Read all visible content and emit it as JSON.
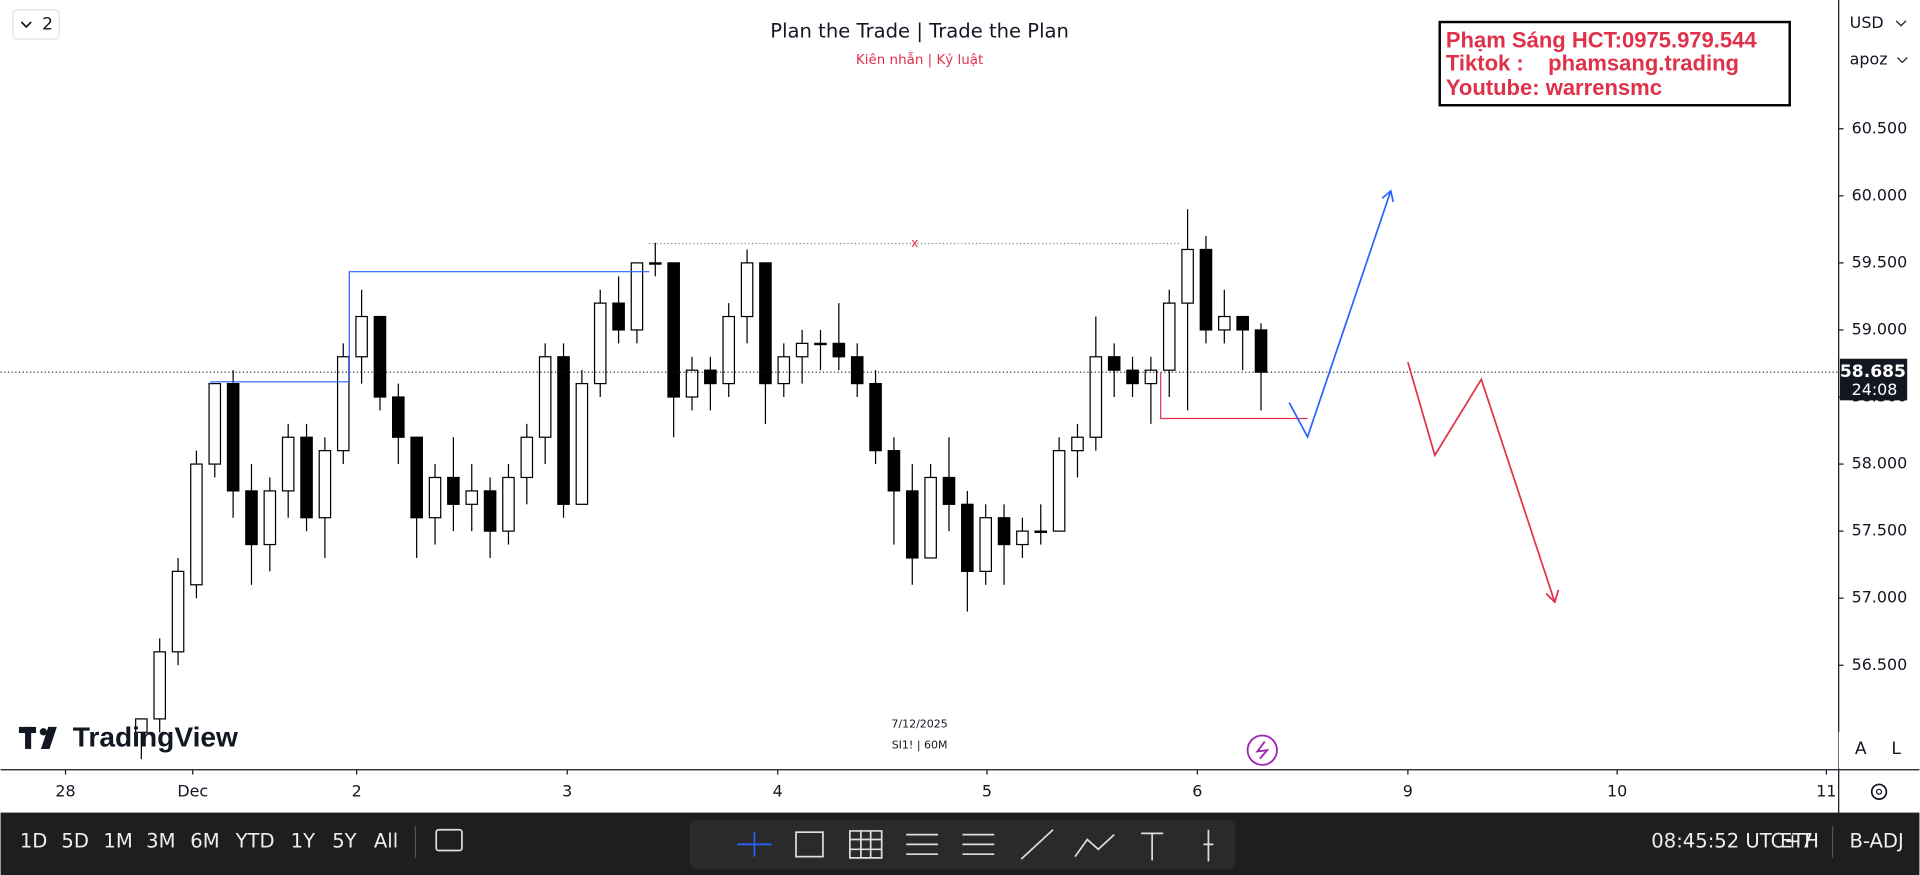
{
  "ui": {
    "interval_badge": "2",
    "currency": "USD",
    "user": "apoz",
    "watermark": [
      "Phạm Sáng HCT:0975.979.544",
      "Tiktok :    phamsang.trading",
      "Youtube: warrensmc"
    ],
    "logo": "TradingView",
    "snapshot_date": "7/12/2025",
    "symbol_interval": "SI1! | 60M",
    "ranges": [
      "1D",
      "5D",
      "1M",
      "3M",
      "6M",
      "YTD",
      "1Y",
      "5Y",
      "All"
    ],
    "clock": "08:45:52 UTC+7",
    "session": "ETH",
    "adjust": "B-ADJ",
    "scale_buttons": [
      "A",
      "L"
    ]
  },
  "chart_data": {
    "type": "candlestick",
    "title": "Plan the Trade | Trade the Plan",
    "subtitle": "Kiên nhẫn | Kỷ luật",
    "annotation": "x",
    "last_price": {
      "value": 58.685,
      "label": "58.685"
    },
    "countdown": "24:08",
    "up_color": "#ffffff",
    "down_color": "#000000",
    "wick_color": "#000000",
    "x": [
      0,
      1,
      2,
      3,
      4,
      5,
      6,
      7,
      8,
      9,
      10,
      11,
      12,
      13,
      14,
      15,
      16,
      17,
      18,
      19,
      20,
      21,
      22,
      23,
      24,
      25,
      26,
      27,
      28,
      29,
      30,
      31,
      32,
      33,
      34,
      35,
      36,
      37,
      38,
      39,
      40,
      41,
      42,
      43,
      44,
      45,
      46,
      47,
      48,
      49,
      50,
      51,
      52,
      53,
      54,
      55,
      56,
      57,
      58,
      59,
      60,
      61
    ],
    "open": [
      56.0,
      56.1,
      56.6,
      57.1,
      58.0,
      58.6,
      57.8,
      57.4,
      57.8,
      58.2,
      57.6,
      58.1,
      58.8,
      59.1,
      58.5,
      58.2,
      57.6,
      57.9,
      57.7,
      57.8,
      57.5,
      57.9,
      58.2,
      58.8,
      57.7,
      58.6,
      59.2,
      59.0,
      59.5,
      59.5,
      58.5,
      58.7,
      58.6,
      59.1,
      59.5,
      58.6,
      58.8,
      58.9,
      58.9,
      58.8,
      58.6,
      58.1,
      57.8,
      57.3,
      57.9,
      57.7,
      57.2,
      57.6,
      57.4,
      57.5,
      57.5,
      58.1,
      58.2,
      58.8,
      58.7,
      58.6,
      58.7,
      59.2,
      59.6,
      59.0,
      59.1,
      59.0
    ],
    "high": [
      56.1,
      56.7,
      57.3,
      58.1,
      58.6,
      58.7,
      58.0,
      57.9,
      58.3,
      58.3,
      58.2,
      58.9,
      59.3,
      59.1,
      58.6,
      58.2,
      58.0,
      58.2,
      58.0,
      57.9,
      58.0,
      58.3,
      58.9,
      58.9,
      58.7,
      59.3,
      59.4,
      59.5,
      59.65,
      59.5,
      58.8,
      58.8,
      59.2,
      59.6,
      59.5,
      58.9,
      59.0,
      59.0,
      59.2,
      58.9,
      58.7,
      58.2,
      58.0,
      58.0,
      58.2,
      57.8,
      57.7,
      57.7,
      57.6,
      57.7,
      58.2,
      58.3,
      59.1,
      58.9,
      58.8,
      58.8,
      59.3,
      59.9,
      59.7,
      59.3,
      59.1,
      59.05
    ],
    "low": [
      55.8,
      56.0,
      56.5,
      57.0,
      57.9,
      57.6,
      57.1,
      57.2,
      57.6,
      57.5,
      57.3,
      58.0,
      58.6,
      58.4,
      58.0,
      57.3,
      57.4,
      57.5,
      57.5,
      57.3,
      57.4,
      57.7,
      58.0,
      57.6,
      57.7,
      58.5,
      58.9,
      58.9,
      59.4,
      58.2,
      58.4,
      58.4,
      58.5,
      58.9,
      58.3,
      58.5,
      58.6,
      58.7,
      58.7,
      58.5,
      58.0,
      57.4,
      57.1,
      57.3,
      57.5,
      56.9,
      57.1,
      57.1,
      57.3,
      57.4,
      57.5,
      57.9,
      58.1,
      58.5,
      58.5,
      58.3,
      58.5,
      58.4,
      58.9,
      58.9,
      58.7,
      58.4
    ],
    "close": [
      56.1,
      56.6,
      57.2,
      58.0,
      58.6,
      57.8,
      57.4,
      57.8,
      58.2,
      57.6,
      58.1,
      58.8,
      59.1,
      58.5,
      58.2,
      57.6,
      57.9,
      57.7,
      57.8,
      57.5,
      57.9,
      58.2,
      58.8,
      57.7,
      58.6,
      59.2,
      59.0,
      59.5,
      59.5,
      58.5,
      58.7,
      58.6,
      59.1,
      59.5,
      58.6,
      58.8,
      58.9,
      58.9,
      58.8,
      58.6,
      58.1,
      57.8,
      57.3,
      57.9,
      57.7,
      57.2,
      57.6,
      57.4,
      57.5,
      57.5,
      58.1,
      58.2,
      58.8,
      58.7,
      58.6,
      58.7,
      59.2,
      59.6,
      59.0,
      59.1,
      59.0,
      58.685
    ],
    "xlim": [
      -7.67,
      92.47
    ],
    "xticks": [
      {
        "value": -4.13,
        "label": "28"
      },
      {
        "value": 2.8,
        "label": "Dec"
      },
      {
        "value": 11.73,
        "label": "2"
      },
      {
        "value": 23.2,
        "label": "3"
      },
      {
        "value": 34.67,
        "label": "4"
      },
      {
        "value": 46.07,
        "label": "5"
      },
      {
        "value": 57.53,
        "label": "6"
      },
      {
        "value": 69,
        "label": "9"
      },
      {
        "value": 80.4,
        "label": "10"
      },
      {
        "value": 91.8,
        "label": "11"
      }
    ],
    "ylim": [
      55.73,
      61.46
    ],
    "yticks": [
      {
        "value": 56.5,
        "label": "56.500"
      },
      {
        "value": 57,
        "label": "57.000"
      },
      {
        "value": 57.5,
        "label": "57.500"
      },
      {
        "value": 58,
        "label": "58.000"
      },
      {
        "value": 58.5,
        "label": "58.500"
      },
      {
        "value": 59,
        "label": "59.000"
      },
      {
        "value": 59.5,
        "label": "59.500"
      },
      {
        "value": 60,
        "label": "60.000"
      },
      {
        "value": 60.5,
        "label": "60.500"
      }
    ]
  }
}
